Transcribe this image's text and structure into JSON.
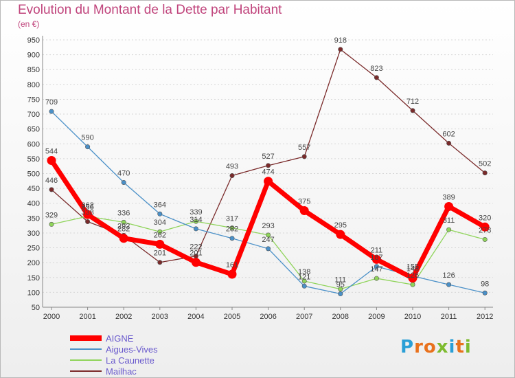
{
  "chart_data": {
    "type": "line",
    "title": "Evolution du Montant de la Dette par Habitant",
    "subtitle": "(en €)",
    "x": [
      "2000",
      "2001",
      "2002",
      "2003",
      "2004",
      "2005",
      "2006",
      "2007",
      "2008",
      "2009",
      "2010",
      "2011",
      "2012"
    ],
    "ylim": [
      50,
      950
    ],
    "yticks": [
      50,
      100,
      150,
      200,
      250,
      300,
      350,
      400,
      450,
      500,
      550,
      600,
      650,
      700,
      750,
      800,
      850,
      900,
      950
    ],
    "grid": "horizontal-dashed",
    "legend_position": "bottom-left",
    "series": [
      {
        "name": "AIGNE",
        "color": "#ff0000",
        "values": [
          544,
          362,
          282,
          262,
          201,
          161,
          474,
          375,
          295,
          211,
          148,
          389,
          320
        ]
      },
      {
        "name": "Aigues-Vives",
        "color": "#4a90c8",
        "values": [
          709,
          590,
          470,
          364,
          314,
          282,
          247,
          121,
          95,
          187,
          155,
          126,
          98
        ]
      },
      {
        "name": "La Caunette",
        "color": "#8fd45a",
        "values": [
          329,
          356,
          336,
          304,
          339,
          317,
          293,
          138,
          111,
          147,
          126,
          311,
          278
        ]
      },
      {
        "name": "Mailhac",
        "color": "#7a2a2a",
        "values": [
          446,
          338,
          292,
          201,
          222,
          493,
          527,
          557,
          918,
          823,
          712,
          602,
          502
        ]
      }
    ]
  },
  "logo": {
    "letters": [
      "P",
      "r",
      "o",
      "x",
      "i",
      "t",
      "i"
    ]
  }
}
